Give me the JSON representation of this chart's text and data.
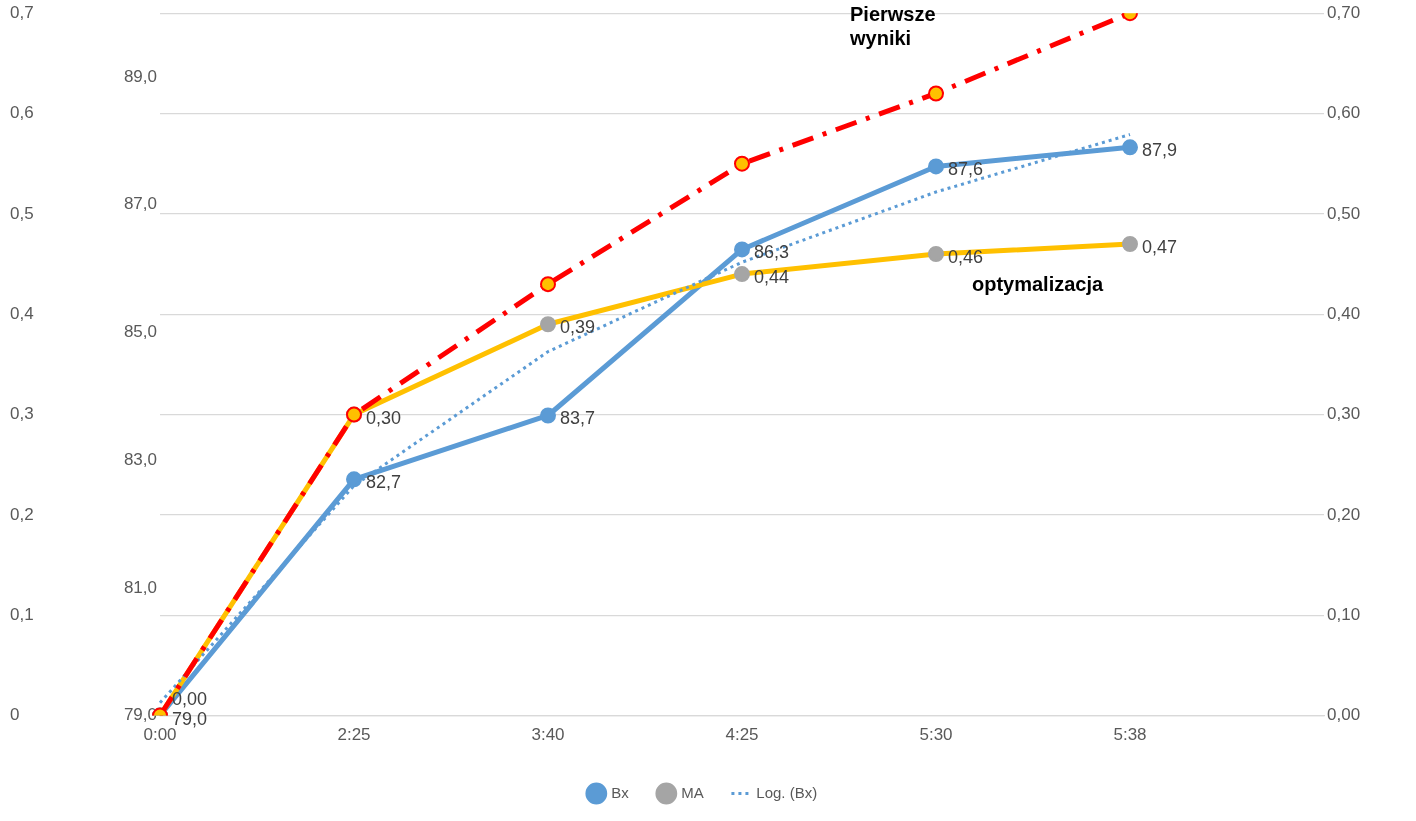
{
  "chart_data": {
    "type": "line",
    "categories": [
      "0:00",
      "2:25",
      "3:40",
      "4:25",
      "5:30",
      "5:38",
      null
    ],
    "ylim": [
      79,
      90
    ],
    "yticks": [
      {
        "value": 79,
        "label": "79,0"
      },
      {
        "value": 81,
        "label": "81,0"
      },
      {
        "value": 83,
        "label": "83,0"
      },
      {
        "value": 85,
        "label": "85,0"
      },
      {
        "value": 87,
        "label": "87,0"
      },
      {
        "value": 89,
        "label": "89,0"
      }
    ],
    "y2lim": [
      0,
      0.7
    ],
    "y2ticks": [
      {
        "value": 0,
        "label": "0,00"
      },
      {
        "value": 0.1,
        "label": "0,10"
      },
      {
        "value": 0.2,
        "label": "0,20"
      },
      {
        "value": 0.3,
        "label": "0,30"
      },
      {
        "value": 0.4,
        "label": "0,40"
      },
      {
        "value": 0.5,
        "label": "0,50"
      },
      {
        "value": 0.6,
        "label": "0,60"
      },
      {
        "value": 0.7,
        "label": "0,70"
      }
    ],
    "y3lim": [
      0,
      0.7
    ],
    "y3ticks": [
      0,
      {
        "value": 0.1,
        "label": "0,1"
      },
      {
        "value": 0.2,
        "label": "0,2"
      },
      {
        "value": 0.3,
        "label": "0,3"
      },
      {
        "value": 0.4,
        "label": "0,4"
      },
      {
        "value": 0.5,
        "label": "0,5"
      },
      {
        "value": 0.6,
        "label": "0,6"
      },
      {
        "value": 0.7,
        "label": "0,7"
      }
    ],
    "series": [
      {
        "name": "Bx",
        "color": "#5b9bd5",
        "values": [
          79.0,
          82.7,
          83.7,
          86.3,
          87.6,
          87.9,
          null
        ],
        "value_labels": [
          "79,0",
          "82,7",
          "83,7",
          "86,3",
          "87,6",
          "87,9",
          null
        ]
      },
      {
        "name": "MA",
        "color": "#ffc000",
        "colors": [
          "#a5a5a5",
          "#a5a5a5",
          "#a5a5a5",
          "#a5a5a5",
          "#a5a5a5",
          "#a5a5a5",
          "#a5a5a5"
        ],
        "axis": "y2",
        "values": [
          0,
          0.3,
          0.39,
          0.44,
          0.46,
          0.47,
          null
        ],
        "value_labels": [
          "0,00",
          "0,30",
          "0,39",
          "0,44",
          "0,46",
          "0,47",
          null
        ]
      },
      {
        "name": "Log. (Bx)",
        "type": "line",
        "color": "#5b9bd5",
        "line_style": "dotted",
        "marker": "none",
        "values": [
          79.2,
          82.6,
          84.7,
          86.1,
          87.2,
          88.1,
          null
        ]
      },
      {
        "color": "#ff0000",
        "colors": [
          "#ffc000",
          "#ffc000",
          "#ffc000",
          "#ffc000",
          "#ffc000",
          "#ffc000",
          "#ffc000"
        ],
        "axis": "y2",
        "line_style": "dashed",
        "values": [
          0,
          0.3,
          0.43,
          0.55,
          0.62,
          0.7,
          null
        ]
      }
    ],
    "annotations": [
      "Pierwsze\nwyniki",
      "optymalizacja"
    ],
    "grid": "y",
    "legend": "bottom",
    "marker": "circle",
    "line_style": "solid"
  }
}
